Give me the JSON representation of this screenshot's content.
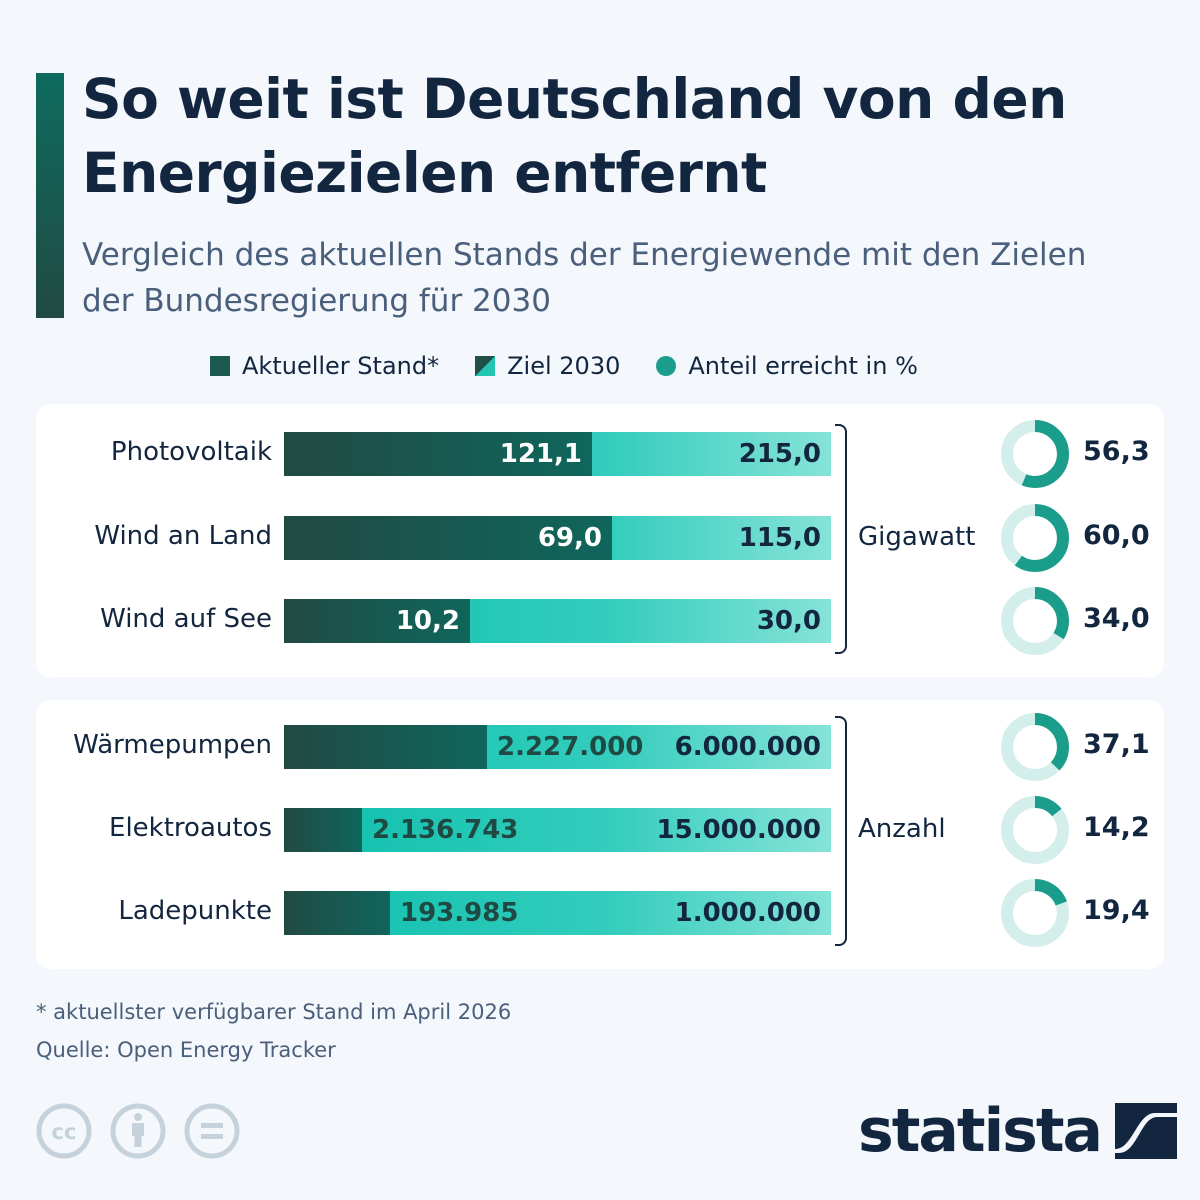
{
  "header": {
    "title": "So weit ist Deutschland von den Energiezielen entfernt",
    "subtitle": "Vergleich des aktuellen Stands der Energiewende mit den Zielen der Bundesregierung für 2030"
  },
  "legend": {
    "current": "Aktueller Stand*",
    "target": "Ziel 2030",
    "share": "Anteil erreicht in %"
  },
  "colors": {
    "current_dark": "#214a43",
    "target_teal": "#0ebfac",
    "target_light": "#86e3d8",
    "donut_fill": "#1a9d8a",
    "donut_track": "#d3eeeb",
    "text_dark": "#13263f",
    "background": "#f4f7fb"
  },
  "chart_data": {
    "type": "bar",
    "title": "So weit ist Deutschland von den Energiezielen entfernt",
    "subtitle": "Vergleich des aktuellen Stands der Energiewende mit den Zielen der Bundesregierung für 2030",
    "legend": [
      "Aktueller Stand*",
      "Ziel 2030",
      "Anteil erreicht in %"
    ],
    "legend_position": "top",
    "groups": [
      {
        "unit": "Gigawatt",
        "rows": [
          {
            "label": "Photovoltaik",
            "current": 121.1,
            "target": 215.0,
            "current_text": "121,1",
            "target_text": "215,0",
            "share": 56.3,
            "share_text": "56,3"
          },
          {
            "label": "Wind an Land",
            "current": 69.0,
            "target": 115.0,
            "current_text": "69,0",
            "target_text": "115,0",
            "share": 60.0,
            "share_text": "60,0"
          },
          {
            "label": "Wind auf See",
            "current": 10.2,
            "target": 30.0,
            "current_text": "10,2",
            "target_text": "30,0",
            "share": 34.0,
            "share_text": "34,0"
          }
        ]
      },
      {
        "unit": "Anzahl",
        "rows": [
          {
            "label": "Wärmepumpen",
            "current": 2227000,
            "target": 6000000,
            "current_text": "2.227.000",
            "target_text": "6.000.000",
            "share": 37.1,
            "share_text": "37,1"
          },
          {
            "label": "Elektroautos",
            "current": 2136743,
            "target": 15000000,
            "current_text": "2.136.743",
            "target_text": "15.000.000",
            "share": 14.2,
            "share_text": "14,2"
          },
          {
            "label": "Ladepunkte",
            "current": 193985,
            "target": 1000000,
            "current_text": "193.985",
            "target_text": "1.000.000",
            "share": 19.4,
            "share_text": "19,4"
          }
        ]
      }
    ]
  },
  "footer": {
    "footnote": "* aktuellster verfügbarer Stand im April 2026",
    "source": "Quelle: Open Energy Tracker",
    "license_icons": [
      "cc-icon",
      "attribution-icon",
      "no-derivatives-icon"
    ],
    "logo": "statista"
  }
}
